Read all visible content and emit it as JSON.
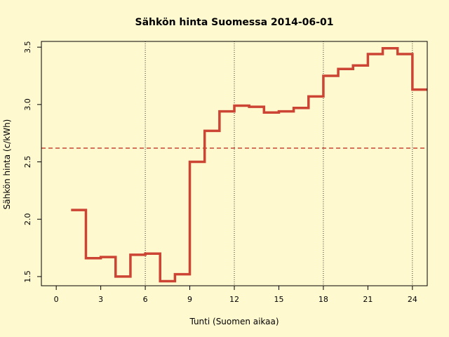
{
  "chart_data": {
    "type": "line",
    "step": true,
    "title": "Sähkön hinta Suomessa 2014-06-01",
    "xlabel": "Tunti (Suomen aikaa)",
    "ylabel": "Sähkön hinta (c/kWh)",
    "xlim": [
      -1,
      25
    ],
    "ylim": [
      1.42,
      3.55
    ],
    "xticks": [
      0,
      3,
      6,
      9,
      12,
      15,
      18,
      21,
      24
    ],
    "xtick_labels": [
      "0",
      "3",
      "6",
      "9",
      "12",
      "15",
      "18",
      "21",
      "24"
    ],
    "yticks": [
      1.5,
      2.0,
      2.5,
      3.0,
      3.5
    ],
    "ytick_labels": [
      "1.5",
      "2.0",
      "2.5",
      "3.0",
      "3.5"
    ],
    "vlines": [
      6,
      12,
      18,
      24
    ],
    "mean_line": 2.62,
    "series": [
      {
        "color": "#cc4433",
        "x": [
          1,
          2,
          3,
          4,
          5,
          6,
          7,
          8,
          9,
          10,
          11,
          12,
          13,
          14,
          15,
          16,
          17,
          18,
          19,
          20,
          21,
          22,
          23,
          24
        ],
        "values": [
          2.08,
          1.66,
          1.67,
          1.5,
          1.69,
          1.7,
          1.46,
          1.52,
          2.5,
          2.77,
          2.94,
          2.99,
          2.98,
          2.93,
          2.94,
          2.97,
          3.07,
          3.25,
          3.31,
          3.34,
          3.44,
          3.49,
          3.44,
          3.13
        ]
      }
    ],
    "background": "#fff9d0",
    "grid": false
  }
}
